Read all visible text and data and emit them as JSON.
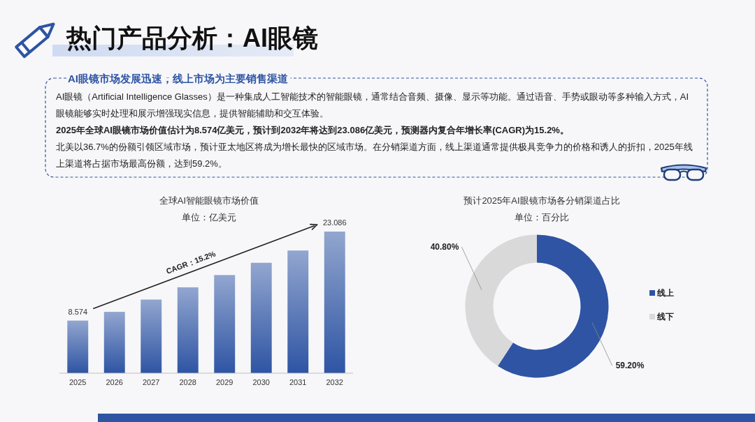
{
  "chart_data": [
    {
      "type": "other",
      "title": "热门产品分析：AI眼镜",
      "subtitle": "AI眼镜市场发展迅速，线上市场为主要销售渠道",
      "annotations": [
        "AI眼镜（Artificial Intelligence Glasses）是一种集成人工智能技术的智能眼镜，通常结合音频、摄像、显示等功能。通过语音、手势或眼动等多种输入方式，AI眼镜能够实时处理和展示增强现实信息，提供智能辅助和交互体验。",
        "2025年全球AI眼镜市场价值估计为8.574亿美元，预计到2032年将达到23.086亿美元，预测器内复合年增长率(CAGR)为15.2%。",
        "北美以36.7%的份额引领区域市场，预计亚太地区将成为增长最快的区域市场。在分销渠道方面，线上渠道通常提供极具竞争力的价格和诱人的折扣，2025年线上渠道将占据市场最高份额，达到59.2%。"
      ]
    },
    {
      "type": "bar",
      "title": "全球AI智能眼镜市场价值",
      "subtitle": "单位：亿美元",
      "categories": [
        "2025",
        "2026",
        "2027",
        "2028",
        "2029",
        "2030",
        "2031",
        "2032"
      ],
      "values": [
        8.574,
        10,
        12,
        14,
        16,
        18,
        20,
        23.086
      ],
      "value_labels": [
        "8.574",
        null,
        null,
        null,
        null,
        null,
        null,
        "23.086"
      ],
      "color": "#2e54a3",
      "tick_labels": "x",
      "annotations": [
        "CAGR：15.2%"
      ]
    },
    {
      "type": "donut",
      "title": "预计2025年AI眼镜市场各分销渠道占比",
      "subtitle": "单位：百分比",
      "categories": [
        "线上",
        "线下"
      ],
      "values": [
        59.2,
        40.8
      ],
      "colors": [
        "#2e54a3",
        "#d9d9d9"
      ],
      "value_labels": [
        "59.20%",
        "40.80%"
      ],
      "legend": "right"
    }
  ]
}
